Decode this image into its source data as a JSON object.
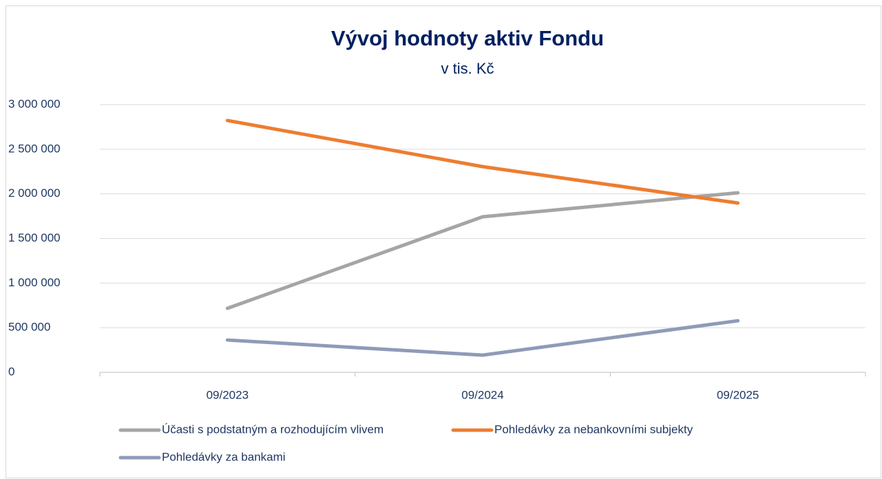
{
  "chart_data": {
    "type": "line",
    "title": "Vývoj hodnoty aktiv Fondu",
    "subtitle": "v tis. Kč",
    "categories": [
      "09/2023",
      "09/2024",
      "09/2025"
    ],
    "series": [
      {
        "name": "Účasti s podstatným a rozhodujícím vlivem",
        "color": "#a5a5a5",
        "values": [
          717000,
          1743000,
          2012000
        ]
      },
      {
        "name": "Pohledávky za nebankovními subjekty",
        "color": "#ed7d31",
        "values": [
          2822000,
          2305000,
          1897000
        ]
      },
      {
        "name": "Pohledávky za bankami",
        "color": "#8e9bb8",
        "values": [
          362000,
          193000,
          578000
        ]
      }
    ],
    "ylim": [
      0,
      3000000
    ],
    "yticks": [
      0,
      {
        "value": 500000,
        "label": "500 000"
      },
      {
        "value": 1000000,
        "label": "1 000 000"
      },
      {
        "value": 1500000,
        "label": "1 500 000"
      },
      {
        "value": 2000000,
        "label": "2 000 000"
      },
      {
        "value": 2500000,
        "label": "2 500 000"
      },
      {
        "value": 3000000,
        "label": "3 000 000"
      }
    ],
    "grid": true,
    "legend": "bottom"
  }
}
